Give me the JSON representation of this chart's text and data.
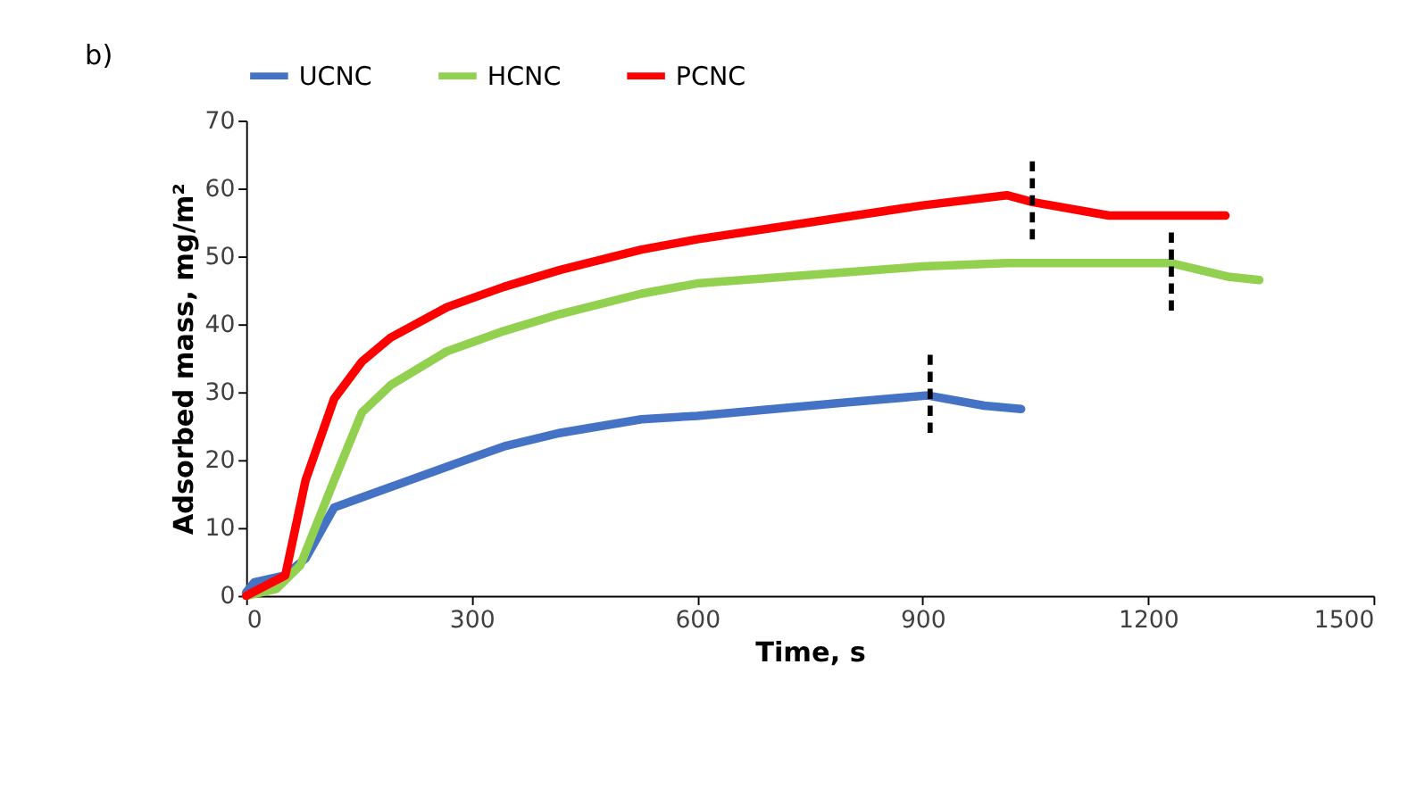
{
  "chart_data": {
    "type": "line",
    "title": "b)",
    "xlabel": "Time, s",
    "ylabel": "Adsorbed mass, mg/m²",
    "xlim": [
      0,
      1500
    ],
    "xticks": [
      0,
      300,
      600,
      900,
      {
        "value": 1200,
        "label": "1200"
      },
      {
        "value": 1500,
        "label": "1500"
      }
    ],
    "ylim": [
      0,
      70
    ],
    "yticks": [
      0,
      10,
      20,
      30,
      40,
      50,
      60,
      70
    ],
    "grid": false,
    "legend": "top",
    "marker": "none",
    "line_style": "solid",
    "series": [
      {
        "name": "UCNC",
        "color": "#4472c4",
        "x": [
          0,
          11,
          52,
          79,
          117,
          154,
          192,
          267,
          343,
          418,
          526,
          600,
          800,
          907,
          982,
          1031
        ],
        "values": [
          0.5,
          2,
          3,
          5.5,
          13,
          14.5,
          16,
          19,
          22,
          24,
          26,
          26.5,
          28.5,
          29.5,
          28,
          27.5
        ]
      },
      {
        "name": "HCNC",
        "color": "#92d050",
        "x": [
          0,
          40,
          72,
          117,
          154,
          192,
          267,
          343,
          418,
          526,
          600,
          900,
          1012,
          1231,
          1306,
          1348
        ],
        "values": [
          0,
          1,
          4.5,
          17,
          27,
          31,
          36,
          39,
          41.5,
          44.5,
          46,
          48.5,
          49,
          49,
          47,
          46.5
        ]
      },
      {
        "name": "PCNC",
        "color": "#ff0000",
        "x": [
          0,
          52,
          79,
          117,
          154,
          192,
          267,
          343,
          418,
          526,
          600,
          900,
          1012,
          1046,
          1148,
          1303
        ],
        "values": [
          0,
          3,
          17,
          29,
          34.5,
          38,
          42.5,
          45.5,
          48,
          51,
          52.5,
          57.5,
          59,
          58,
          56,
          56
        ]
      },
      {
        "type": "line",
        "line_style": "dashed",
        "color": "#000000",
        "x": [
          910,
          910
        ],
        "values": [
          24,
          36
        ]
      },
      {
        "type": "line",
        "line_style": "dashed",
        "color": "#000000",
        "x": [
          1046,
          1046
        ],
        "values": [
          52.5,
          64
        ]
      },
      {
        "type": "line",
        "line_style": "dashed",
        "color": "#000000",
        "x": [
          1231,
          1231
        ],
        "values": [
          42,
          54
        ]
      }
    ]
  }
}
